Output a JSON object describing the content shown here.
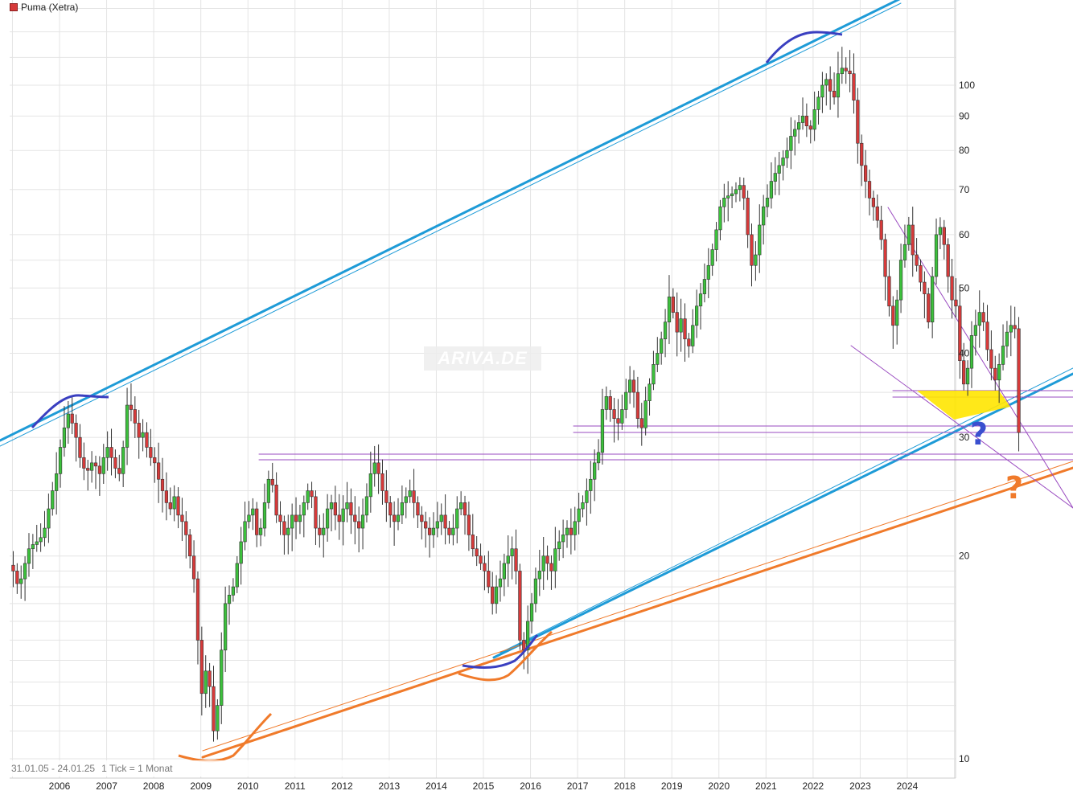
{
  "header": {
    "legend_label": "Puma (Xetra)"
  },
  "watermark": "ARIVA.DE",
  "footer": {
    "range": "31.01.05 - 24.01.25",
    "tick": "1 Tick = 1 Monat"
  },
  "chart_data": {
    "type": "candlestick",
    "title": "Puma (Xetra)",
    "scale": "log",
    "grid": true,
    "ylim": [
      9.5,
      135
    ],
    "y_ticks": [
      10,
      20,
      30,
      40,
      50,
      60,
      70,
      80,
      90,
      100
    ],
    "x_ticks": [
      "2006",
      "2007",
      "2008",
      "2009",
      "2010",
      "2011",
      "2012",
      "2013",
      "2014",
      "2015",
      "2016",
      "2017",
      "2018",
      "2019",
      "2020",
      "2021",
      "2022",
      "2023",
      "2024"
    ],
    "x_range": [
      "2005-01",
      "2025-01"
    ],
    "colors": {
      "up": "#3cc13c",
      "down": "#d63a3a",
      "channel": "#1e9bd7",
      "support": "#f07a2a",
      "arcs": "#3a3fc0",
      "triangle": "#9a4bc0",
      "zone": "#ffe600"
    },
    "series": [
      {
        "name": "Puma (Xetra)",
        "frequency": "monthly",
        "close": [
          19.0,
          18.2,
          18.5,
          19.5,
          20.5,
          20.8,
          21.0,
          21.3,
          22.0,
          23.5,
          25.0,
          26.5,
          29.0,
          31.0,
          32.5,
          31.5,
          30.0,
          28.0,
          27.0,
          26.8,
          27.5,
          27.2,
          26.5,
          28.0,
          29.0,
          28.0,
          27.0,
          26.5,
          29.0,
          33.5,
          33.0,
          31.5,
          30.0,
          30.5,
          29.0,
          28.0,
          27.5,
          26.0,
          25.0,
          24.0,
          23.5,
          24.5,
          23.0,
          22.5,
          21.5,
          20.0,
          18.5,
          15.0,
          12.5,
          13.5,
          12.8,
          11.0,
          12.0,
          14.5,
          17.0,
          17.5,
          18.0,
          19.5,
          21.0,
          22.5,
          23.0,
          23.5,
          21.5,
          22.0,
          24.0,
          26.0,
          25.5,
          23.0,
          22.5,
          21.5,
          22.0,
          23.0,
          22.5,
          23.0,
          24.0,
          25.0,
          24.5,
          22.0,
          21.5,
          22.0,
          23.5,
          24.0,
          23.0,
          22.5,
          23.5,
          24.0,
          23.0,
          22.5,
          22.0,
          23.0,
          24.5,
          26.5,
          27.5,
          26.5,
          25.0,
          24.0,
          23.0,
          22.5,
          23.0,
          24.0,
          24.5,
          25.0,
          24.0,
          23.0,
          22.5,
          22.0,
          21.5,
          22.0,
          22.5,
          23.0,
          22.0,
          21.5,
          22.0,
          23.5,
          24.0,
          23.0,
          21.5,
          20.5,
          20.0,
          19.5,
          19.0,
          18.0,
          17.0,
          18.0,
          18.5,
          19.5,
          20.0,
          20.5,
          19.0,
          15.0,
          14.5,
          16.0,
          17.0,
          18.5,
          19.0,
          20.0,
          19.5,
          19.0,
          20.5,
          21.0,
          21.5,
          22.0,
          21.5,
          22.5,
          23.5,
          24.0,
          25.0,
          26.0,
          27.5,
          28.5,
          33.0,
          34.5,
          33.0,
          32.0,
          31.5,
          33.0,
          35.0,
          36.5,
          35.0,
          32.0,
          31.0,
          34.0,
          36.0,
          38.5,
          40.0,
          42.0,
          44.5,
          48.5,
          46.0,
          43.0,
          45.0,
          42.0,
          41.0,
          44.0,
          47.0,
          49.0,
          51.5,
          54.0,
          57.0,
          61.0,
          66.0,
          68.0,
          68.5,
          69.0,
          70.0,
          71.0,
          68.0,
          60.0,
          54.0,
          56.0,
          62.0,
          66.0,
          68.0,
          72.0,
          74.0,
          76.0,
          78.0,
          80.0,
          84.0,
          86.0,
          88.0,
          90.0,
          87.0,
          86.0,
          92.0,
          96.0,
          100.0,
          102.0,
          98.0,
          96.0,
          104.0,
          106.0,
          105.0,
          104.0,
          95.0,
          82.0,
          76.0,
          72.0,
          68.0,
          66.0,
          63.0,
          59.0,
          52.0,
          47.0,
          44.0,
          48.0,
          55.0,
          58.0,
          62.0,
          56.0,
          54.0,
          51.0,
          49.0,
          44.5,
          52.0,
          60.0,
          61.5,
          58.0,
          52.0,
          48.0,
          47.0,
          39.0,
          36.0,
          38.0,
          42.5,
          44.0,
          46.0,
          44.5,
          40.5,
          38.0,
          36.5,
          38.5,
          41.0,
          43.0,
          44.0,
          43.5,
          30.5
        ]
      }
    ],
    "annotations": {
      "question_marks": [
        "?",
        "?"
      ]
    }
  }
}
